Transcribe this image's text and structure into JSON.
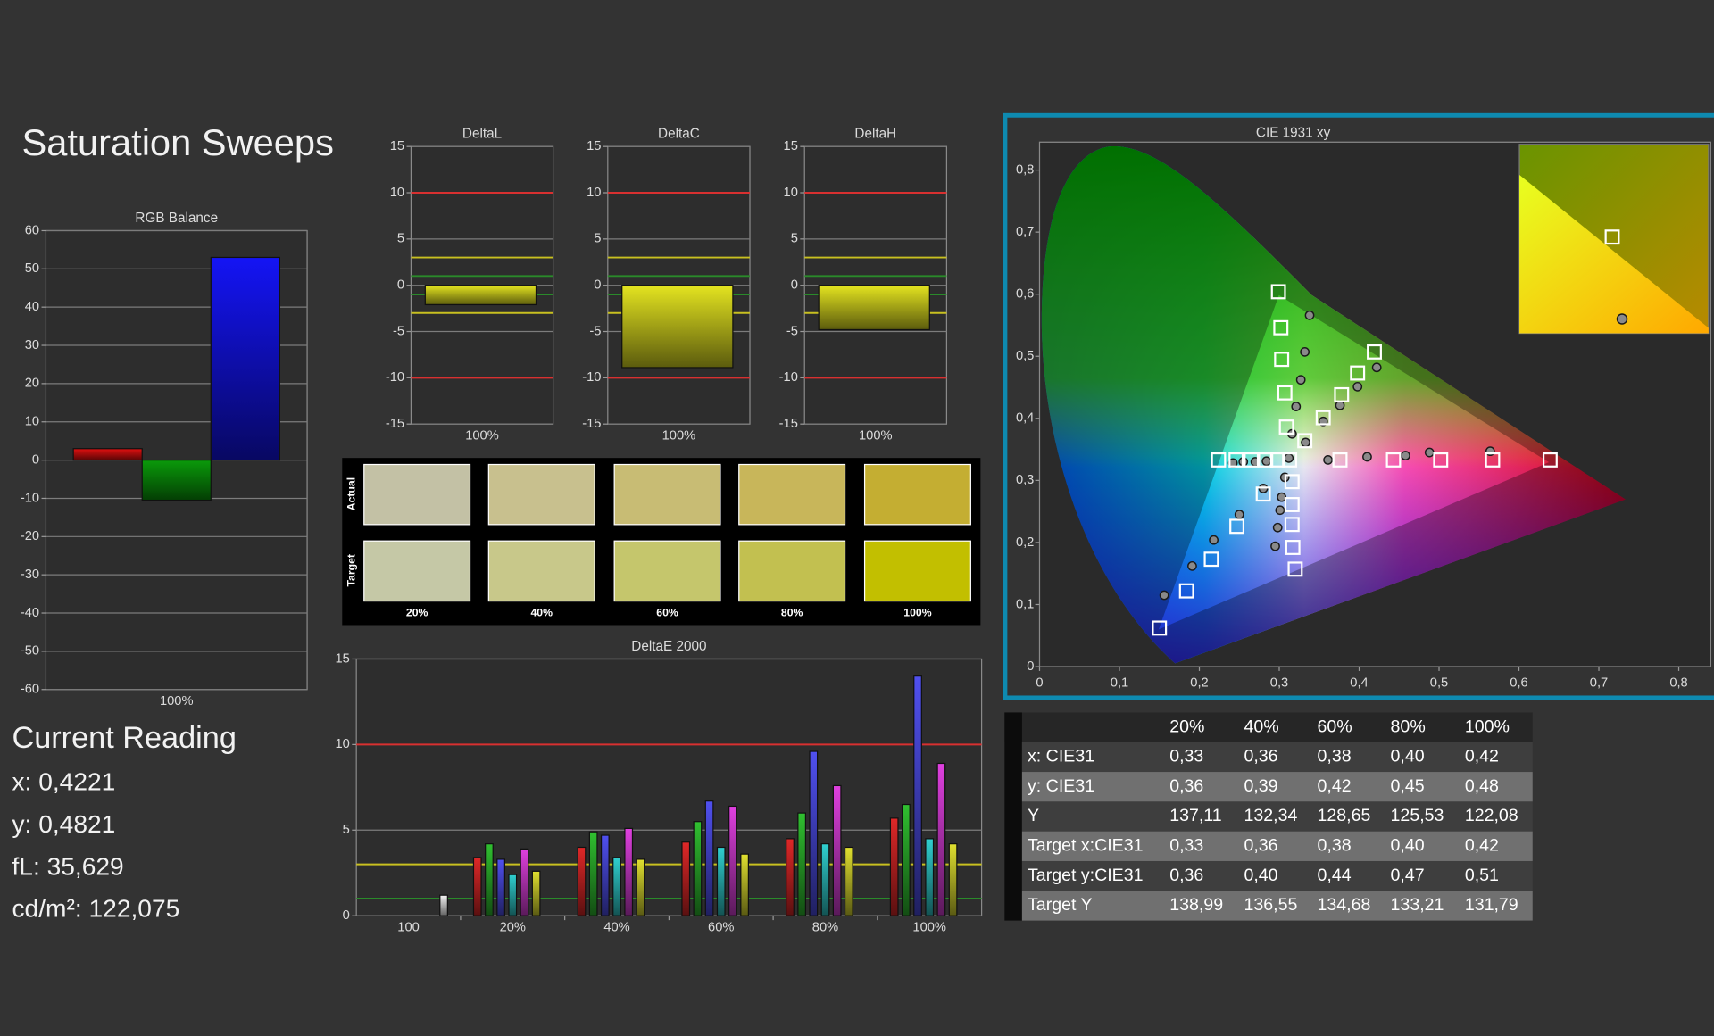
{
  "header": {
    "title": "Saturation Sweeps"
  },
  "current_reading": {
    "title": "Current Reading",
    "lines": [
      "x: 0,4221",
      "y: 0,4821",
      "fL: 35,629",
      "cd/m²: 122,075"
    ]
  },
  "swatches": {
    "row_labels": [
      "Actual",
      "Target"
    ],
    "column_labels": [
      "20%",
      "40%",
      "60%",
      "80%",
      "100%"
    ],
    "colors": [
      [
        "#c3c1a5",
        "#c8c08e",
        "#c8bc74",
        "#c8b65a",
        "#c4ae32"
      ],
      [
        "#c5c8a6",
        "#c8c88a",
        "#c5c66c",
        "#c2c050",
        "#c2bf00"
      ]
    ]
  },
  "table": {
    "columns": [
      "20%",
      "40%",
      "60%",
      "80%",
      "100%"
    ],
    "rows": [
      [
        "x: CIE31",
        "0,33",
        "0,36",
        "0,38",
        "0,40",
        "0,42"
      ],
      [
        "y: CIE31",
        "0,36",
        "0,39",
        "0,42",
        "0,45",
        "0,48"
      ],
      [
        "Y",
        "137,11",
        "132,34",
        "128,65",
        "125,53",
        "122,08"
      ],
      [
        "Target x:CIE31",
        "0,33",
        "0,36",
        "0,38",
        "0,40",
        "0,42"
      ],
      [
        "Target y:CIE31",
        "0,36",
        "0,40",
        "0,44",
        "0,47",
        "0,51"
      ],
      [
        "Target Y",
        "138,99",
        "136,55",
        "134,68",
        "133,21",
        "131,79"
      ]
    ]
  },
  "chart_data": [
    {
      "type": "bar",
      "title": "RGB Balance",
      "categories": [
        "100%"
      ],
      "series": [
        {
          "color": "#e01010",
          "values": [
            3
          ]
        },
        {
          "color": "#0a9a0a",
          "values": [
            -10.5
          ]
        },
        {
          "color": "#1414f5",
          "values": [
            53
          ]
        }
      ],
      "ylim": [
        -60,
        60
      ],
      "yticks": [
        -60,
        -50,
        -40,
        -30,
        -20,
        -10,
        0,
        10,
        20,
        30,
        40,
        50,
        60
      ],
      "grid": true
    },
    {
      "type": "bar",
      "title": "DeltaL",
      "categories": [
        "100%"
      ],
      "values": [
        -2.1
      ],
      "color": "#e4e420",
      "ylim": [
        -15,
        15
      ],
      "yticks": [
        -15,
        -10,
        -5,
        0,
        5,
        10,
        15
      ],
      "grid": true,
      "reference_lines": [
        {
          "value": 10,
          "color": "#d83030"
        },
        {
          "value": -10,
          "color": "#d83030"
        },
        {
          "value": 3,
          "color": "#c8c020"
        },
        {
          "value": -3,
          "color": "#c8c020"
        },
        {
          "value": 1,
          "color": "#2a8a2a"
        },
        {
          "value": -1,
          "color": "#2a8a2a"
        }
      ]
    },
    {
      "type": "bar",
      "title": "DeltaC",
      "categories": [
        "100%"
      ],
      "values": [
        -8.9
      ],
      "color": "#e4e420",
      "ylim": [
        -15,
        15
      ],
      "yticks": [
        -15,
        -10,
        -5,
        0,
        5,
        10,
        15
      ],
      "grid": true,
      "reference_lines": [
        {
          "value": 10,
          "color": "#d83030"
        },
        {
          "value": -10,
          "color": "#d83030"
        },
        {
          "value": 3,
          "color": "#c8c020"
        },
        {
          "value": -3,
          "color": "#c8c020"
        },
        {
          "value": 1,
          "color": "#2a8a2a"
        },
        {
          "value": -1,
          "color": "#2a8a2a"
        }
      ]
    },
    {
      "type": "bar",
      "title": "DeltaH",
      "categories": [
        "100%"
      ],
      "values": [
        -4.8
      ],
      "color": "#e4e420",
      "ylim": [
        -15,
        15
      ],
      "yticks": [
        -15,
        -10,
        -5,
        0,
        5,
        10,
        15
      ],
      "grid": true,
      "reference_lines": [
        {
          "value": 10,
          "color": "#d83030"
        },
        {
          "value": -10,
          "color": "#d83030"
        },
        {
          "value": 3,
          "color": "#c8c020"
        },
        {
          "value": -3,
          "color": "#c8c020"
        },
        {
          "value": 1,
          "color": "#2a8a2a"
        },
        {
          "value": -1,
          "color": "#2a8a2a"
        }
      ]
    },
    {
      "type": "bar",
      "title": "DeltaE 2000",
      "categories": [
        "100",
        "20%",
        "40%",
        "60%",
        "80%",
        "100%"
      ],
      "series": [
        {
          "color": "#e02828",
          "values": [
            null,
            3.4,
            4.0,
            4.3,
            4.5,
            5.7
          ]
        },
        {
          "color": "#30c030",
          "values": [
            null,
            4.2,
            4.9,
            5.5,
            6.0,
            6.5
          ]
        },
        {
          "color": "#5050f0",
          "values": [
            null,
            3.3,
            4.7,
            6.7,
            9.6,
            14.0
          ]
        },
        {
          "color": "#30d0d0",
          "values": [
            null,
            2.4,
            3.4,
            4.0,
            4.2,
            4.5
          ]
        },
        {
          "color": "#e040e0",
          "values": [
            null,
            3.9,
            5.1,
            6.4,
            7.6,
            8.9
          ]
        },
        {
          "color": "#e0e030",
          "values": [
            null,
            2.6,
            3.3,
            3.6,
            4.0,
            4.2
          ]
        },
        {
          "color": "#f4f4f4",
          "values": [
            1.2,
            null,
            null,
            null,
            null,
            null
          ]
        }
      ],
      "ylim": [
        0,
        15
      ],
      "yticks": [
        0,
        5,
        10,
        15
      ],
      "grid": true,
      "reference_lines": [
        {
          "value": 10,
          "color": "#d83030"
        },
        {
          "value": 3,
          "color": "#c8c020"
        },
        {
          "value": 1,
          "color": "#2a8a2a"
        }
      ]
    },
    {
      "type": "scatter",
      "title": "CIE 1931 xy",
      "xlim": [
        0,
        0.84
      ],
      "ylim": [
        0,
        0.845
      ],
      "xticks": [
        0,
        {
          "value": 0.1,
          "label": "0,1"
        },
        {
          "value": 0.2,
          "label": "0,2"
        },
        {
          "value": 0.3,
          "label": "0,3"
        },
        {
          "value": 0.4,
          "label": "0,4"
        },
        {
          "value": 0.5,
          "label": "0,5"
        },
        {
          "value": 0.6,
          "label": "0,6"
        },
        {
          "value": 0.7,
          "label": "0,7"
        },
        {
          "value": 0.8,
          "label": "0,8"
        }
      ],
      "yticks": [
        0,
        {
          "value": 0.1,
          "label": "0,1"
        },
        {
          "value": 0.2,
          "label": "0,2"
        },
        {
          "value": 0.3,
          "label": "0,3"
        },
        {
          "value": 0.4,
          "label": "0,4"
        },
        {
          "value": 0.5,
          "label": "0,5"
        },
        {
          "value": 0.6,
          "label": "0,6"
        },
        {
          "value": 0.7,
          "label": "0,7"
        },
        {
          "value": 0.8,
          "label": "0,8"
        }
      ],
      "series": [
        {
          "marker": "circle",
          "color": "#8a8a8a",
          "x": [
            0.338,
            0.332,
            0.327,
            0.321,
            0.316,
            0.312,
            0.422,
            0.398,
            0.376,
            0.355,
            0.333,
            0.564,
            0.488,
            0.458,
            0.41,
            0.361,
            0.284,
            0.27,
            0.255,
            0.242,
            0.156,
            0.191,
            0.218,
            0.25,
            0.28,
            0.295,
            0.298,
            0.301,
            0.303,
            0.307
          ],
          "y": [
            0.566,
            0.507,
            0.462,
            0.419,
            0.375,
            0.336,
            0.482,
            0.451,
            0.421,
            0.395,
            0.361,
            0.347,
            0.345,
            0.34,
            0.338,
            0.333,
            0.331,
            0.33,
            0.33,
            0.328,
            0.115,
            0.162,
            0.204,
            0.245,
            0.287,
            0.194,
            0.224,
            0.252,
            0.273,
            0.305
          ]
        },
        {
          "marker": "square",
          "color": "#ffffff",
          "x": [
            0.299,
            0.302,
            0.303,
            0.307,
            0.309,
            0.313,
            0.332,
            0.355,
            0.378,
            0.398,
            0.419,
            0.376,
            0.443,
            0.502,
            0.567,
            0.639,
            0.224,
            0.246,
            0.265,
            0.283,
            0.298,
            0.15,
            0.184,
            0.215,
            0.247,
            0.28,
            0.32,
            0.317,
            0.316,
            0.316,
            0.316
          ],
          "y": [
            0.604,
            0.546,
            0.495,
            0.441,
            0.386,
            0.333,
            0.364,
            0.401,
            0.438,
            0.473,
            0.507,
            0.333,
            0.333,
            0.333,
            0.333,
            0.333,
            0.333,
            0.333,
            0.333,
            0.333,
            0.333,
            0.062,
            0.122,
            0.173,
            0.226,
            0.278,
            0.157,
            0.192,
            0.229,
            0.261,
            0.298
          ]
        }
      ]
    }
  ]
}
